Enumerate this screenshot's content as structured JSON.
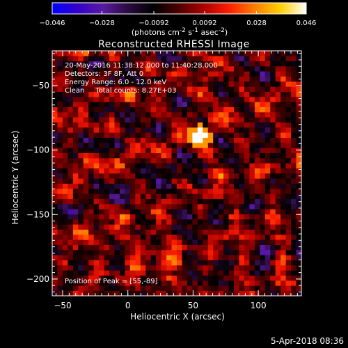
{
  "chart_data": {
    "type": "heatmap",
    "title": "Reconstructed RHESSI Image",
    "xlabel": "Heliocentric X (arcsec)",
    "ylabel": "Heliocentric Y (arcsec)",
    "xlim": [
      -58,
      133
    ],
    "ylim": [
      -213,
      -23
    ],
    "x_ticks": [
      -50,
      0,
      50,
      100
    ],
    "y_ticks": [
      -50,
      -100,
      -150,
      -200
    ],
    "colorbar": {
      "min": -0.046,
      "max": 0.046,
      "ticks": [
        "-0.046",
        "-0.028",
        "-0.0092",
        "0.0092",
        "0.028",
        "0.046"
      ],
      "unit_label_parts": [
        "(photons cm",
        "-2",
        " s",
        "-1",
        " asec",
        "-2",
        ")"
      ],
      "colormap": [
        "#0000ff",
        "#3300cc",
        "#5a1aa0",
        "#2a0a40",
        "#000000",
        "#500000",
        "#b00000",
        "#ff2000",
        "#ff8000",
        "#ffd000",
        "#ffffff"
      ]
    },
    "annotations": [
      "20-May-2016 11:38:12.000 to 11:40:28.000",
      "Detectors: 3F 8F, Att 0",
      "Energy Range: 6.0 - 12.0 keV",
      "Clean     Total counts: 8.27E+03"
    ],
    "peak": {
      "label": "Position of Peak = [55,-89]",
      "x": 55,
      "y": -89,
      "value": 0.046
    },
    "grid_cells": {
      "nx": 48,
      "ny": 48,
      "pixel_arcsec": 4
    },
    "timestamp": "5-Apr-2018 08:36"
  }
}
